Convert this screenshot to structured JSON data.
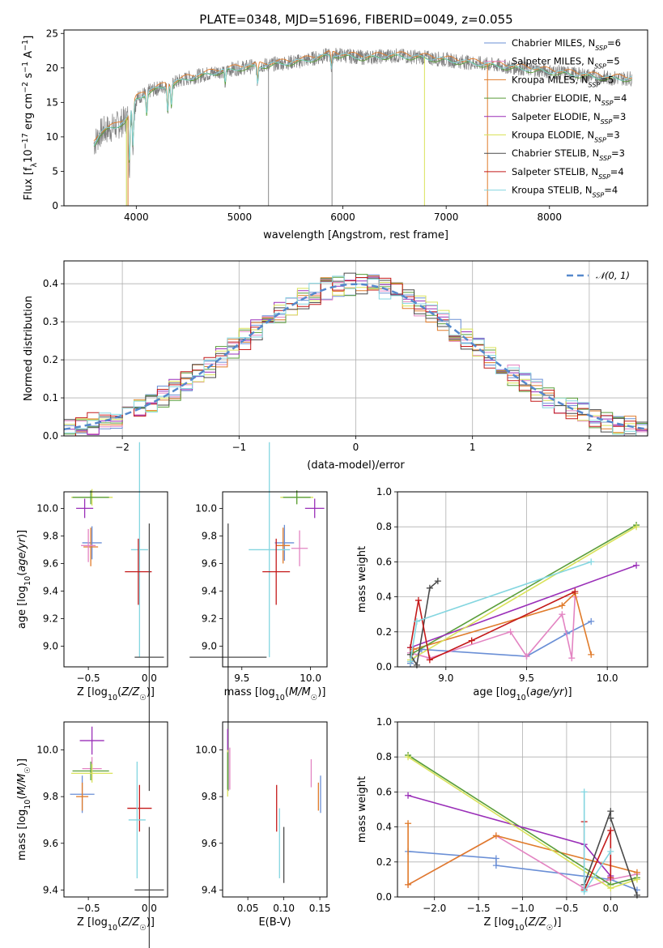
{
  "figure": {
    "title": "PLATE=0348, MJD=51696, FIBERID=0049, z=0.055"
  },
  "models": [
    {
      "name": "Chabrier MILES",
      "nssp": "6",
      "color": "#6a8fd6"
    },
    {
      "name": "Salpeter MILES",
      "nssp": "5",
      "color": "#e384c2"
    },
    {
      "name": "Kroupa MILES",
      "nssp": "5",
      "color": "#e07b2a"
    },
    {
      "name": "Chabrier ELODIE",
      "nssp": "4",
      "color": "#5a9e3a"
    },
    {
      "name": "Salpeter ELODIE",
      "nssp": "3",
      "color": "#9a2fb8"
    },
    {
      "name": "Kroupa ELODIE",
      "nssp": "3",
      "color": "#d9e25a"
    },
    {
      "name": "Chabrier STELIB",
      "nssp": "3",
      "color": "#4a4a4a"
    },
    {
      "name": "Salpeter STELIB",
      "nssp": "4",
      "color": "#c41a1a"
    },
    {
      "name": "Kroupa STELIB",
      "nssp": "4",
      "color": "#84d6e0"
    }
  ],
  "chart_data": [
    {
      "id": "spectrum",
      "type": "line",
      "xlabel": "wavelength [Angstrom, rest frame]",
      "ylabel": "Flux [f_λ10^-17 erg cm^-2 s^-1 A^-1]",
      "xlim": [
        3300,
        8950
      ],
      "ylim": [
        0,
        25.5
      ],
      "xticks": [
        4000,
        5000,
        6000,
        7000,
        8000
      ],
      "yticks": [
        0,
        5,
        10,
        15,
        20,
        25
      ],
      "continuum": {
        "x": [
          3590,
          3650,
          3700,
          3800,
          3900,
          4000,
          4100,
          4300,
          4500,
          4800,
          5000,
          5300,
          5600,
          5900,
          6200,
          6500,
          6800,
          7100,
          7400,
          7700,
          8000,
          8300,
          8600,
          8800
        ],
        "y": [
          9.0,
          10.5,
          11.0,
          11.5,
          12.5,
          15.5,
          16.5,
          17.5,
          18.5,
          19.5,
          20.0,
          20.5,
          21.0,
          22.0,
          21.5,
          21.8,
          21.5,
          21.0,
          20.5,
          20.0,
          19.5,
          19.0,
          18.5,
          18.5
        ]
      },
      "absorption_lines": [
        {
          "x": 3934,
          "depth": 7.5
        },
        {
          "x": 3968,
          "depth": 6.0
        },
        {
          "x": 4101,
          "depth": 3.0
        },
        {
          "x": 4304,
          "depth": 3.5
        },
        {
          "x": 4340,
          "depth": 3.0
        },
        {
          "x": 4861,
          "depth": 2.0
        },
        {
          "x": 5175,
          "depth": 2.5
        },
        {
          "x": 5890,
          "depth": 2.0
        }
      ],
      "spikes": [
        {
          "x": 3905,
          "y": 0,
          "color": "#c8d64a"
        },
        {
          "x": 3920,
          "y": 0,
          "color": "#e07b2a"
        },
        {
          "x": 5280,
          "y": 0,
          "color": "#888888"
        },
        {
          "x": 5895,
          "y": 0,
          "color": "#888888"
        },
        {
          "x": 6790,
          "y": 0,
          "color": "#d9e25a"
        },
        {
          "x": 7400,
          "y": 0,
          "color": "#e07b2a"
        }
      ]
    },
    {
      "id": "residual-hist",
      "type": "histogram",
      "xlabel": "(data-model)/error",
      "ylabel": "Normed distribution",
      "xlim": [
        -2.5,
        2.5
      ],
      "ylim": [
        0,
        0.46
      ],
      "xticks": [
        -2,
        -1,
        0,
        1,
        2
      ],
      "yticks": [
        0.0,
        0.1,
        0.2,
        0.3,
        0.4
      ],
      "bin_width": 0.1,
      "normal_curve": {
        "label": "𝒩(0, 1)",
        "mean": 0,
        "sigma": 1,
        "color": "#5588cc"
      }
    },
    {
      "id": "age-vs-Z",
      "type": "errorbar",
      "xlabel": "Z [log10(Z/Z☉)]",
      "ylabel": "age  [log10(age/yr)]",
      "xlim": [
        -0.7,
        0.15
      ],
      "ylim": [
        8.85,
        10.12
      ],
      "xticks": [
        -0.5,
        0.0
      ],
      "yticks": [
        9.0,
        9.2,
        9.4,
        9.6,
        9.8,
        10.0
      ],
      "points": [
        {
          "x": -0.47,
          "y": 10.08,
          "xerr": 0.17,
          "yerr": 0.06,
          "color": "#d9e25a"
        },
        {
          "x": -0.48,
          "y": 10.08,
          "xerr": 0.15,
          "yerr": 0.05,
          "color": "#5a9e3a"
        },
        {
          "x": -0.53,
          "y": 10.0,
          "xerr": 0.07,
          "yerr": 0.07,
          "color": "#9a2fb8"
        },
        {
          "x": -0.47,
          "y": 9.75,
          "xerr": 0.08,
          "yerr": 0.12,
          "color": "#6a8fd6"
        },
        {
          "x": -0.48,
          "y": 9.72,
          "xerr": 0.06,
          "yerr": 0.14,
          "color": "#e07b2a"
        },
        {
          "x": -0.5,
          "y": 9.73,
          "xerr": 0.06,
          "yerr": 0.12,
          "color": "#e384c2"
        },
        {
          "x": -0.08,
          "y": 9.7,
          "xerr": 0.07,
          "yerr": 0.78,
          "color": "#84d6e0"
        },
        {
          "x": -0.09,
          "y": 9.54,
          "xerr": 0.11,
          "yerr": 0.24,
          "color": "#c41a1a"
        },
        {
          "x": 0.0,
          "y": 8.92,
          "xerr": 0.12,
          "yerr": 0.97,
          "color": "#4a4a4a"
        }
      ]
    },
    {
      "id": "age-vs-mass",
      "type": "errorbar",
      "xlabel": "mass [log10(M/M☉)]",
      "xlim": [
        9.36,
        10.12
      ],
      "ylim": [
        8.85,
        10.12
      ],
      "xticks": [
        9.5,
        10.0
      ],
      "yticks": [
        9.0,
        9.2,
        9.4,
        9.6,
        9.8,
        10.0
      ],
      "points": [
        {
          "x": 9.9,
          "y": 10.08,
          "xerr": 0.12,
          "yerr": 0.05,
          "color": "#d9e25a"
        },
        {
          "x": 9.9,
          "y": 10.08,
          "xerr": 0.1,
          "yerr": 0.05,
          "color": "#5a9e3a"
        },
        {
          "x": 10.03,
          "y": 10.0,
          "xerr": 0.07,
          "yerr": 0.07,
          "color": "#9a2fb8"
        },
        {
          "x": 9.81,
          "y": 9.75,
          "xerr": 0.07,
          "yerr": 0.13,
          "color": "#6a8fd6"
        },
        {
          "x": 9.8,
          "y": 9.73,
          "xerr": 0.05,
          "yerr": 0.13,
          "color": "#e07b2a"
        },
        {
          "x": 9.92,
          "y": 9.71,
          "xerr": 0.06,
          "yerr": 0.13,
          "color": "#e384c2"
        },
        {
          "x": 9.7,
          "y": 9.7,
          "xerr": 0.15,
          "yerr": 0.78,
          "color": "#84d6e0"
        },
        {
          "x": 9.75,
          "y": 9.54,
          "xerr": 0.1,
          "yerr": 0.24,
          "color": "#c41a1a"
        },
        {
          "x": 9.4,
          "y": 8.92,
          "xerr": 0.28,
          "yerr": 0.97,
          "color": "#4a4a4a"
        }
      ]
    },
    {
      "id": "weight-vs-age",
      "type": "line",
      "xlabel": "age  [log10(age/yr)]",
      "ylabel": "mass weight",
      "xlim": [
        8.7,
        10.25
      ],
      "ylim": [
        0,
        1.0
      ],
      "xticks": [
        9.0,
        9.5,
        10.0
      ],
      "yticks": [
        0.0,
        0.2,
        0.4,
        0.6,
        0.8,
        1.0
      ],
      "series": [
        {
          "model": "Chabrier MILES",
          "color": "#6a8fd6",
          "x": [
            8.78,
            8.85,
            9.5,
            9.75,
            9.9
          ],
          "y": [
            0.02,
            0.1,
            0.06,
            0.19,
            0.26
          ]
        },
        {
          "model": "Salpeter MILES",
          "color": "#e384c2",
          "x": [
            8.78,
            8.9,
            9.4,
            9.5,
            9.72,
            9.78,
            9.8
          ],
          "y": [
            0.08,
            0.05,
            0.2,
            0.06,
            0.3,
            0.05,
            0.4
          ]
        },
        {
          "model": "Kroupa MILES",
          "color": "#e07b2a",
          "x": [
            8.78,
            8.8,
            9.72,
            9.8,
            9.9
          ],
          "y": [
            0.03,
            0.1,
            0.35,
            0.42,
            0.07
          ]
        },
        {
          "model": "Chabrier ELODIE",
          "color": "#5a9e3a",
          "x": [
            8.78,
            10.18
          ],
          "y": [
            0.07,
            0.81
          ]
        },
        {
          "model": "Salpeter ELODIE",
          "color": "#9a2fb8",
          "x": [
            8.78,
            10.18
          ],
          "y": [
            0.11,
            0.58
          ]
        },
        {
          "model": "Kroupa ELODIE",
          "color": "#d9e25a",
          "x": [
            8.78,
            10.18
          ],
          "y": [
            0.04,
            0.8
          ]
        },
        {
          "model": "Chabrier STELIB",
          "color": "#4a4a4a",
          "x": [
            8.78,
            8.82,
            8.9,
            8.95
          ],
          "y": [
            0.07,
            0.01,
            0.45,
            0.49
          ]
        },
        {
          "model": "Salpeter STELIB",
          "color": "#c41a1a",
          "x": [
            8.78,
            8.83,
            8.9,
            9.16,
            9.8
          ],
          "y": [
            0.11,
            0.38,
            0.04,
            0.15,
            0.43
          ]
        },
        {
          "model": "Kroupa STELIB",
          "color": "#84d6e0",
          "x": [
            8.78,
            8.82,
            9.9
          ],
          "y": [
            0.03,
            0.26,
            0.6
          ]
        }
      ]
    },
    {
      "id": "mass-vs-Z",
      "type": "errorbar",
      "xlabel": "Z [log10(Z/Z☉)]",
      "ylabel": "mass [log10(M/M☉)]",
      "xlim": [
        -0.7,
        0.15
      ],
      "ylim": [
        9.37,
        10.12
      ],
      "xticks": [
        -0.5,
        0.0
      ],
      "yticks": [
        9.4,
        9.6,
        9.8,
        10.0
      ],
      "points": [
        {
          "x": -0.47,
          "y": 10.04,
          "xerr": 0.1,
          "yerr": 0.06,
          "color": "#9a2fb8"
        },
        {
          "x": -0.47,
          "y": 9.92,
          "xerr": 0.08,
          "yerr": 0.05,
          "color": "#e384c2"
        },
        {
          "x": -0.48,
          "y": 9.91,
          "xerr": 0.15,
          "yerr": 0.04,
          "color": "#5a9e3a"
        },
        {
          "x": -0.47,
          "y": 9.9,
          "xerr": 0.17,
          "yerr": 0.04,
          "color": "#d9e25a"
        },
        {
          "x": -0.55,
          "y": 9.81,
          "xerr": 0.1,
          "yerr": 0.08,
          "color": "#6a8fd6"
        },
        {
          "x": -0.55,
          "y": 9.8,
          "xerr": 0.05,
          "yerr": 0.06,
          "color": "#e07b2a"
        },
        {
          "x": -0.08,
          "y": 9.75,
          "xerr": 0.1,
          "yerr": 0.1,
          "color": "#c41a1a"
        },
        {
          "x": -0.1,
          "y": 9.7,
          "xerr": 0.07,
          "yerr": 0.25,
          "color": "#84d6e0"
        },
        {
          "x": 0.0,
          "y": 9.4,
          "xerr": 0.12,
          "yerr": 0.27,
          "color": "#4a4a4a"
        }
      ]
    },
    {
      "id": "mass-vs-ebv",
      "type": "errorbar",
      "xlabel": "E(B-V)",
      "xlim": [
        0.015,
        0.16
      ],
      "ylim": [
        9.37,
        10.12
      ],
      "xticks": [
        0.05,
        0.1,
        0.15
      ],
      "yticks": [
        9.4,
        9.6,
        9.8,
        10.0
      ],
      "points": [
        {
          "x": 0.022,
          "y": 10.0,
          "xerr": 0.0,
          "yerr": 0.09,
          "color": "#9a2fb8"
        },
        {
          "x": 0.025,
          "y": 9.92,
          "xerr": 0.0,
          "yerr": 0.09,
          "color": "#e384c2"
        },
        {
          "x": 0.022,
          "y": 9.9,
          "xerr": 0.0,
          "yerr": 0.1,
          "color": "#d9e25a"
        },
        {
          "x": 0.022,
          "y": 9.91,
          "xerr": 0.0,
          "yerr": 0.08,
          "color": "#5a9e3a"
        },
        {
          "x": 0.138,
          "y": 9.9,
          "xerr": 0.0,
          "yerr": 0.06,
          "color": "#e384c2"
        },
        {
          "x": 0.151,
          "y": 9.81,
          "xerr": 0.0,
          "yerr": 0.08,
          "color": "#6a8fd6"
        },
        {
          "x": 0.148,
          "y": 9.8,
          "xerr": 0.0,
          "yerr": 0.06,
          "color": "#e07b2a"
        },
        {
          "x": 0.09,
          "y": 9.75,
          "xerr": 0.0,
          "yerr": 0.1,
          "color": "#c41a1a"
        },
        {
          "x": 0.094,
          "y": 9.6,
          "xerr": 0.0,
          "yerr": 0.15,
          "color": "#84d6e0"
        },
        {
          "x": 0.1,
          "y": 9.55,
          "xerr": 0.0,
          "yerr": 0.12,
          "color": "#4a4a4a"
        }
      ]
    },
    {
      "id": "weight-vs-Z",
      "type": "line",
      "xlabel": "Z [log10(Z/Z☉)]",
      "ylabel": "mass weight",
      "xlim": [
        -2.42,
        0.42
      ],
      "ylim": [
        0,
        1.0
      ],
      "xticks": [
        -2.0,
        -1.5,
        -1.0,
        -0.5,
        0.0
      ],
      "yticks": [
        0.0,
        0.2,
        0.4,
        0.6,
        0.8,
        1.0
      ],
      "series": [
        {
          "model": "Chabrier MILES",
          "color": "#6a8fd6",
          "x": [
            -2.3,
            -1.3,
            -1.3,
            0.0,
            0.3
          ],
          "y": [
            0.26,
            0.22,
            0.18,
            0.1,
            0.04
          ]
        },
        {
          "model": "Salpeter MILES",
          "color": "#e384c2",
          "x": [
            -2.3,
            -1.3,
            -0.3,
            0.0,
            0.3
          ],
          "y": [
            0.07,
            0.35,
            0.05,
            0.1,
            0.13
          ]
        },
        {
          "model": "Kroupa MILES",
          "color": "#e07b2a",
          "x": [
            -2.3,
            -2.3,
            -1.3,
            0.3
          ],
          "y": [
            0.42,
            0.07,
            0.35,
            0.14
          ]
        },
        {
          "model": "Chabrier ELODIE",
          "color": "#5a9e3a",
          "x": [
            -2.3,
            0.0,
            0.3
          ],
          "y": [
            0.81,
            0.07,
            0.11
          ]
        },
        {
          "model": "Salpeter ELODIE",
          "color": "#9a2fb8",
          "x": [
            -2.3,
            -0.3,
            0.0
          ],
          "y": [
            0.58,
            0.3,
            0.12
          ]
        },
        {
          "model": "Kroupa ELODIE",
          "color": "#d9e25a",
          "x": [
            -2.3,
            0.0,
            0.3
          ],
          "y": [
            0.8,
            0.05,
            0.1
          ]
        },
        {
          "model": "Chabrier STELIB",
          "color": "#4a4a4a",
          "x": [
            -0.3,
            0.0,
            0.0,
            0.3
          ],
          "y": [
            0.07,
            0.49,
            0.45,
            0.01
          ]
        },
        {
          "model": "Salpeter STELIB",
          "color": "#c41a1a",
          "x": [
            -0.3,
            -0.3,
            0.0,
            0.0
          ],
          "y": [
            0.43,
            0.04,
            0.38,
            0.11
          ]
        },
        {
          "model": "Kroupa STELIB",
          "color": "#84d6e0",
          "x": [
            -0.3,
            -0.3,
            0.0
          ],
          "y": [
            0.6,
            0.03,
            0.26
          ]
        }
      ]
    }
  ]
}
